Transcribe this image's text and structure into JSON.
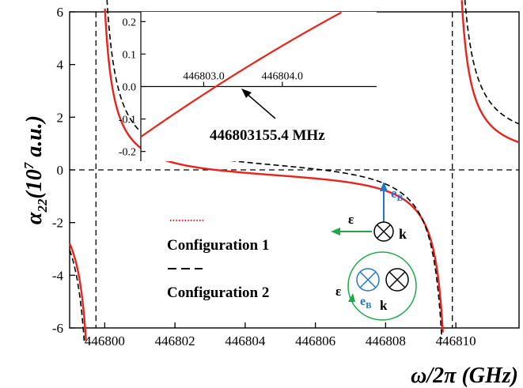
{
  "chart_data": {
    "type": "line",
    "xlabel": "ω/2π (GHz)",
    "ylabel_main": "α",
    "ylabel_sub": "22",
    "ylabel_unit": "(10",
    "ylabel_exp": "7",
    "ylabel_tail": " a.u.)",
    "xlim": [
      446799.0,
      446811.8
    ],
    "ylim": [
      -6,
      6
    ],
    "x_ticks": [
      446800,
      446802,
      446804,
      446806,
      446808,
      446810
    ],
    "x_tick_labels": [
      "446800",
      "446802",
      "446804",
      "446806",
      "446808",
      "446810"
    ],
    "y_ticks": [
      -6,
      -4,
      -2,
      0,
      2,
      4,
      6
    ],
    "y_tick_labels": [
      "-6",
      "-4",
      "-2",
      "0",
      "2",
      "4",
      "6"
    ],
    "resonances": [
      446799.75,
      446809.9
    ],
    "series": [
      {
        "name": "Configuration 1",
        "color": "#e8231b",
        "style": "solid",
        "zero_crossing": 446803.155,
        "scale": 1.7,
        "slope": 0.03
      },
      {
        "name": "Configuration 2",
        "color": "#000000",
        "style": "dashed",
        "zero_crossing": 446806.2,
        "scale": 2.1,
        "slope": 0.04
      }
    ],
    "inset": {
      "xlim": [
        446802.2,
        446805.2
      ],
      "ylim": [
        -0.23,
        0.23
      ],
      "x_ticks": [
        446803.0,
        446804.0
      ],
      "x_tick_labels": [
        "446803.0",
        "446804.0"
      ],
      "y_ticks": [
        -0.2,
        -0.1,
        0.0,
        0.1,
        0.2
      ],
      "y_tick_labels": [
        "-0.2",
        "-0.1",
        "0.0",
        "0.1",
        "0.2"
      ],
      "annotation": "446803155.4 MHz",
      "zero_crossing": 446803.1554
    },
    "geometry_diagram": {
      "e_label": "e",
      "e_sub": "B",
      "epsilon": "ε",
      "k_label": "k",
      "blue": "#1f78c8",
      "green": "#1fa84a"
    }
  }
}
